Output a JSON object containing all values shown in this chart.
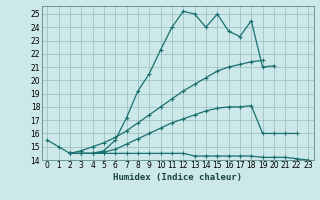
{
  "xlabel": "Humidex (Indice chaleur)",
  "bg_color": "#cce8e8",
  "grid_color": "#99bbbb",
  "line_color": "#1a7070",
  "xlim": [
    -0.5,
    23.5
  ],
  "ylim": [
    14,
    25.6
  ],
  "yticks": [
    14,
    15,
    16,
    17,
    18,
    19,
    20,
    21,
    22,
    23,
    24,
    25
  ],
  "xticks": [
    0,
    1,
    2,
    3,
    4,
    5,
    6,
    7,
    8,
    9,
    10,
    11,
    12,
    13,
    14,
    15,
    16,
    17,
    18,
    19,
    20,
    21,
    22,
    23
  ],
  "series": [
    {
      "x": [
        0,
        1,
        2,
        3,
        4,
        5,
        6,
        7,
        8,
        9,
        10,
        11,
        12,
        13,
        14,
        15,
        16,
        17,
        18,
        19,
        20
      ],
      "y": [
        15.5,
        15.0,
        14.5,
        14.5,
        14.5,
        14.7,
        15.5,
        17.2,
        19.2,
        20.5,
        22.3,
        24.0,
        25.2,
        25.0,
        24.0,
        25.0,
        23.7,
        23.3,
        24.5,
        21.0,
        21.1
      ]
    },
    {
      "x": [
        2,
        3,
        4,
        5,
        6,
        7,
        8,
        9,
        10,
        11,
        12,
        13,
        14,
        15,
        16,
        17,
        18,
        19
      ],
      "y": [
        14.5,
        14.7,
        15.0,
        15.3,
        15.7,
        16.2,
        16.8,
        17.4,
        18.0,
        18.6,
        19.2,
        19.7,
        20.2,
        20.7,
        21.0,
        21.2,
        21.4,
        21.5
      ]
    },
    {
      "x": [
        2,
        3,
        4,
        5,
        6,
        7,
        8,
        9,
        10,
        11,
        12,
        13,
        14,
        15,
        16,
        17,
        18,
        19,
        20,
        21,
        22
      ],
      "y": [
        14.5,
        14.5,
        14.5,
        14.6,
        14.8,
        15.2,
        15.6,
        16.0,
        16.4,
        16.8,
        17.1,
        17.4,
        17.7,
        17.9,
        18.0,
        18.0,
        18.1,
        16.0,
        16.0,
        16.0,
        16.0
      ]
    },
    {
      "x": [
        2,
        3,
        4,
        5,
        6,
        7,
        8,
        9,
        10,
        11,
        12,
        13,
        14,
        15,
        16,
        17,
        18,
        19,
        20,
        21,
        22,
        23
      ],
      "y": [
        14.5,
        14.5,
        14.5,
        14.5,
        14.5,
        14.5,
        14.5,
        14.5,
        14.5,
        14.5,
        14.5,
        14.3,
        14.3,
        14.3,
        14.3,
        14.3,
        14.3,
        14.2,
        14.2,
        14.2,
        14.1,
        14.0
      ]
    }
  ]
}
